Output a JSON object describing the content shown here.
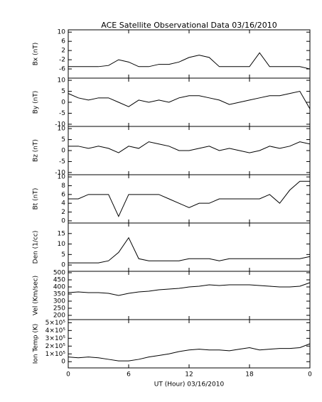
{
  "chart_data": [
    {
      "type": "line",
      "title": "ACE Satellite Observational Data   03/16/2010",
      "ylabel": "Bx (nT)",
      "color": "#000000",
      "x": [
        0,
        1,
        2,
        3,
        4,
        5,
        6,
        7,
        8,
        9,
        10,
        11,
        12,
        13,
        14,
        15,
        16,
        17,
        18,
        19,
        20,
        21,
        22,
        23,
        24
      ],
      "values": [
        -5,
        -5,
        -5,
        -5,
        -4.5,
        -2,
        -3,
        -5,
        -5,
        -4,
        -4,
        -3,
        -1,
        0,
        -1,
        -5,
        -5,
        -5,
        -5,
        1,
        -5,
        -5,
        -5,
        -5,
        -6
      ],
      "xlim": [
        0,
        24
      ],
      "ylim": [
        -10,
        11
      ],
      "yticks": [
        10,
        6,
        2,
        -2,
        -6
      ]
    },
    {
      "type": "line",
      "ylabel": "By (nT)",
      "color": "#000000",
      "x": [
        0,
        1,
        2,
        3,
        4,
        5,
        6,
        7,
        8,
        9,
        10,
        11,
        12,
        13,
        14,
        15,
        16,
        17,
        18,
        19,
        20,
        21,
        22,
        23,
        24
      ],
      "values": [
        4,
        2,
        1,
        2,
        2,
        0,
        -2,
        1,
        0,
        1,
        0,
        2,
        3,
        3,
        2,
        1,
        -1,
        0,
        1,
        2,
        3,
        3,
        4,
        5,
        -3
      ],
      "xlim": [
        0,
        24
      ],
      "ylim": [
        -11,
        11
      ],
      "yticks": [
        10,
        5,
        0,
        -5,
        -10
      ]
    },
    {
      "type": "line",
      "ylabel": "Bz (nT)",
      "color": "#000000",
      "x": [
        0,
        1,
        2,
        3,
        4,
        5,
        6,
        7,
        8,
        9,
        10,
        11,
        12,
        13,
        14,
        15,
        16,
        17,
        18,
        19,
        20,
        21,
        22,
        23,
        24
      ],
      "values": [
        2,
        2,
        1,
        2,
        1,
        -1,
        2,
        1,
        4,
        3,
        2,
        0,
        0,
        1,
        2,
        0,
        1,
        0,
        -1,
        0,
        2,
        1,
        2,
        4,
        3
      ],
      "xlim": [
        0,
        24
      ],
      "ylim": [
        -11,
        11
      ],
      "yticks": [
        10,
        5,
        0,
        -5,
        -10
      ]
    },
    {
      "type": "line",
      "ylabel": "Bt (nT)",
      "color": "#000000",
      "x": [
        0,
        1,
        2,
        3,
        4,
        5,
        6,
        7,
        8,
        9,
        10,
        11,
        12,
        13,
        14,
        15,
        16,
        17,
        18,
        19,
        20,
        21,
        22,
        23,
        24
      ],
      "values": [
        5,
        5,
        6,
        6,
        6,
        1,
        6,
        6,
        6,
        6,
        5,
        4,
        3,
        4,
        4,
        5,
        5,
        5,
        5,
        5,
        6,
        4,
        7,
        9,
        9
      ],
      "xlim": [
        0,
        24
      ],
      "ylim": [
        -0.5,
        10.5
      ],
      "yticks": [
        10,
        8,
        6,
        4,
        2,
        0
      ]
    },
    {
      "type": "line",
      "ylabel": "Den (1/cc)",
      "color": "#000000",
      "x": [
        0,
        1,
        2,
        3,
        4,
        5,
        6,
        7,
        8,
        9,
        10,
        11,
        12,
        13,
        14,
        15,
        16,
        17,
        18,
        19,
        20,
        21,
        22,
        23,
        24
      ],
      "values": [
        1,
        1,
        1,
        1,
        2,
        6,
        13,
        3,
        2,
        2,
        2,
        2,
        3,
        3,
        3,
        2,
        3,
        3,
        3,
        3,
        3,
        3,
        3,
        3,
        4
      ],
      "xlim": [
        0,
        24
      ],
      "ylim": [
        -3,
        20
      ],
      "yticks": [
        15,
        10,
        5,
        0
      ]
    },
    {
      "type": "line",
      "ylabel": "Vel (Km/sec)",
      "color": "#000000",
      "x": [
        0,
        1,
        2,
        3,
        4,
        5,
        6,
        7,
        8,
        9,
        10,
        11,
        12,
        13,
        14,
        15,
        16,
        17,
        18,
        19,
        20,
        21,
        22,
        23,
        24
      ],
      "values": [
        360,
        365,
        360,
        360,
        355,
        340,
        355,
        365,
        370,
        380,
        385,
        390,
        400,
        405,
        415,
        410,
        415,
        415,
        415,
        410,
        405,
        400,
        400,
        405,
        430
      ],
      "xlim": [
        0,
        24
      ],
      "ylim": [
        170,
        510
      ],
      "yticks": [
        500,
        450,
        400,
        350,
        300,
        250,
        200
      ]
    },
    {
      "type": "line",
      "ylabel": "Ion Temp (K)",
      "xlabel": "UT (Hour)   03/16/2010",
      "color": "#000000",
      "x": [
        0,
        1,
        2,
        3,
        4,
        5,
        6,
        7,
        8,
        9,
        10,
        11,
        12,
        13,
        14,
        15,
        16,
        17,
        18,
        19,
        20,
        21,
        22,
        23,
        24
      ],
      "values": [
        60000,
        50000,
        60000,
        50000,
        30000,
        10000,
        10000,
        30000,
        60000,
        80000,
        100000,
        130000,
        150000,
        160000,
        150000,
        150000,
        140000,
        160000,
        180000,
        150000,
        160000,
        170000,
        170000,
        180000,
        230000
      ],
      "xlim": [
        0,
        24
      ],
      "ylim": [
        -80000,
        540000
      ],
      "yticks": [
        {
          "value": 500000,
          "label": "5×10⁵"
        },
        {
          "value": 400000,
          "label": "4×10⁵"
        },
        {
          "value": 300000,
          "label": "3×10⁵"
        },
        {
          "value": 200000,
          "label": "2×10⁵"
        },
        {
          "value": 100000,
          "label": "1×10⁵"
        },
        0
      ],
      "xticks": [
        0,
        6,
        12,
        18,
        {
          "value": 24,
          "label": "0"
        }
      ]
    }
  ]
}
